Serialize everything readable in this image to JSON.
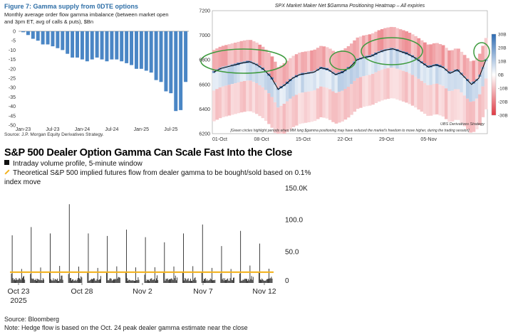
{
  "panel1": {
    "title": "Figure 7: Gamma supply from 0DTE options",
    "subtitle": "Monthly average order flow gamma imbalance (between market open and 3pm ET, avg of calls & puts), $Bn",
    "source": "Source: J.P. Morgan Equity Derivatives Strategy.",
    "bar_color": "#4a86c5"
  },
  "heatmap": {
    "title": "SPX Market Maker Net $Gamma Positioning Heatmap – All expiries",
    "footnote": "[Green circles highlight periods when MM long $gamma positioning may have reduced the market's freedom to move higher, during the trading session]",
    "credit": "UBS Derivatives Strategy",
    "colorbar_labels": [
      "30B",
      "20B",
      "10B",
      "0B",
      "-10B",
      "-20B",
      "-30B"
    ],
    "colors": {
      "positive": "#2d6bb3",
      "negative": "#e03a44",
      "circle": "#3d9a3d",
      "index_line": "#000000"
    }
  },
  "panel3": {
    "title": "S&P 500 Dealer Option Gamma Can Scale Fast Into the Close",
    "legend_volume": "Intraday volume profile, 5-minute window",
    "legend_flow": "Theoretical S&P 500 implied futures flow from dealer gamma to be bought/sold based on 0.1% index move",
    "source": "Source: Bloomberg",
    "note": "Note: Hedge flow is based on the Oct. 24 peak dealer gamma estimate near the close",
    "line_color": "#f2b21f"
  },
  "chart_data": [
    {
      "type": "bar",
      "title": "Figure 7: Gamma supply from 0DTE options",
      "ylabel": "$Bn",
      "ylim": [
        -50,
        0
      ],
      "yticks": [
        0,
        -5,
        -10,
        -15,
        -20,
        -25,
        -30,
        -35,
        -40,
        -45,
        -50
      ],
      "xtick_labels": [
        "Jan-23",
        "Jul-23",
        "Jan-24",
        "Jul-24",
        "Jan-25",
        "Jul-25"
      ],
      "categories": [
        "Jan-23",
        "Feb-23",
        "Mar-23",
        "Apr-23",
        "May-23",
        "Jun-23",
        "Jul-23",
        "Aug-23",
        "Sep-23",
        "Oct-23",
        "Nov-23",
        "Dec-23",
        "Jan-24",
        "Feb-24",
        "Mar-24",
        "Apr-24",
        "May-24",
        "Jun-24",
        "Jul-24",
        "Aug-24",
        "Sep-24",
        "Oct-24",
        "Nov-24",
        "Dec-24",
        "Jan-25",
        "Feb-25",
        "Mar-25",
        "Apr-25",
        "May-25",
        "Jun-25",
        "Jul-25",
        "Aug-25",
        "Sep-25",
        "Oct-25"
      ],
      "values": [
        -0.5,
        -2,
        -4,
        -5,
        -7,
        -7,
        -8,
        -9,
        -10,
        -12,
        -14,
        -14,
        -15,
        -16,
        -15,
        -14,
        -15,
        -16,
        -15,
        -15,
        -16,
        -17,
        -18,
        -20,
        -20,
        -21,
        -22,
        -26,
        -27,
        -32,
        -33,
        -42.5,
        -42,
        -27
      ]
    },
    {
      "type": "heatmap",
      "title": "SPX Market Maker Net $Gamma Positioning Heatmap – All expiries",
      "ylim": [
        6200,
        7200
      ],
      "yticks": [
        6200,
        6400,
        6600,
        6800,
        7000,
        7200
      ],
      "xtick_labels": [
        "01-Oct",
        "08-Oct",
        "15-Oct",
        "22-Oct",
        "29-Oct",
        "05-Nov"
      ],
      "colorbar": {
        "min": -30,
        "max": 30,
        "unit": "B"
      },
      "series": [
        {
          "values": [
            6700,
            6730,
            6745,
            6760,
            6775,
            6785,
            6760,
            6720,
            6660,
            6560,
            6600,
            6650,
            6680,
            6690,
            6700,
            6735,
            6720,
            6680,
            6700,
            6740,
            6800,
            6820,
            6830,
            6860,
            6880,
            6890,
            6870,
            6850,
            6820,
            6780,
            6740,
            6760,
            6740,
            6690,
            6720,
            6660,
            6600,
            6650,
            6800
          ]
        }
      ]
    },
    {
      "type": "bar",
      "title": "S&P 500 Dealer Option Gamma Can Scale Fast Into the Close",
      "ylim": [
        0,
        150
      ],
      "ytick_labels": [
        "0",
        "50.0",
        "100.0",
        "150.0K"
      ],
      "xtick_labels": [
        "Oct 23",
        "Oct 28",
        "Nov 2",
        "Nov 7",
        "Nov 12"
      ],
      "year_label": "2025",
      "series": [
        {
          "name": "Intraday volume profile, 5-minute window",
          "session_peaks": [
            75,
            88,
            78,
            124,
            78,
            74,
            84,
            72,
            64,
            78,
            92,
            58,
            82,
            62
          ]
        },
        {
          "name": "Theoretical S&P 500 implied futures flow from dealer gamma to be bought/sold based on 0.1% index move",
          "value": 17
        }
      ]
    }
  ]
}
